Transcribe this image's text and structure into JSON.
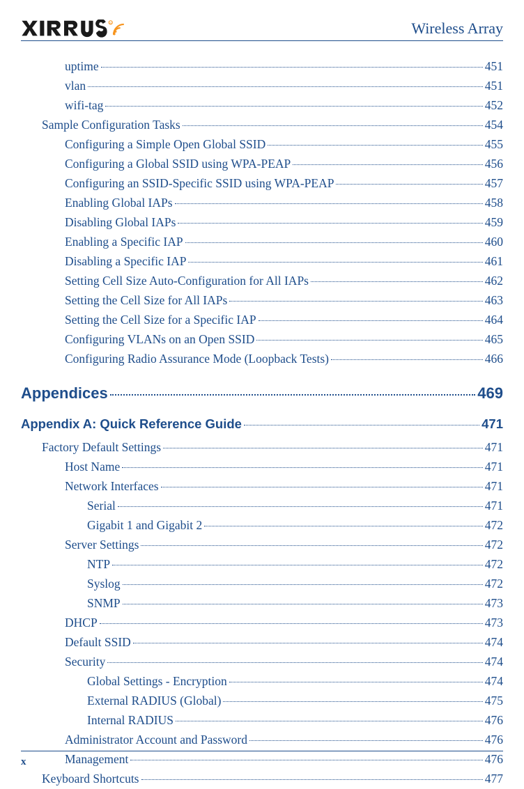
{
  "header": {
    "logo_text": "XIRRUS",
    "title": "Wireless Array"
  },
  "toc": {
    "pre_items": [
      {
        "label": "uptime",
        "page": "451",
        "indent": 2
      },
      {
        "label": "vlan",
        "page": "451",
        "indent": 2
      },
      {
        "label": "wifi-tag",
        "page": "452",
        "indent": 2
      },
      {
        "label": "Sample Configuration Tasks",
        "page": "454",
        "indent": 1
      },
      {
        "label": "Configuring a Simple Open Global SSID",
        "page": "455",
        "indent": 2
      },
      {
        "label": "Configuring a Global SSID using WPA-PEAP",
        "page": "456",
        "indent": 2
      },
      {
        "label": "Configuring an SSID-Specific SSID using WPA-PEAP",
        "page": "457",
        "indent": 2
      },
      {
        "label": "Enabling Global IAPs",
        "page": "458",
        "indent": 2
      },
      {
        "label": "Disabling Global IAPs",
        "page": "459",
        "indent": 2
      },
      {
        "label": "Enabling a Specific IAP",
        "page": "460",
        "indent": 2
      },
      {
        "label": "Disabling a Specific IAP",
        "page": "461",
        "indent": 2
      },
      {
        "label": "Setting Cell Size Auto-Configuration for All IAPs",
        "page": "462",
        "indent": 2
      },
      {
        "label": "Setting the Cell Size for All IAPs",
        "page": "463",
        "indent": 2
      },
      {
        "label": "Setting the Cell Size for a Specific IAP",
        "page": "464",
        "indent": 2
      },
      {
        "label": "Configuring VLANs on an Open SSID",
        "page": "465",
        "indent": 2
      },
      {
        "label": "Configuring Radio Assurance Mode (Loopback Tests)",
        "page": "466",
        "indent": 2
      }
    ],
    "appendices": {
      "label": "Appendices",
      "page": "469"
    },
    "appendix_a": {
      "label": "Appendix A: Quick Reference Guide",
      "page": "471"
    },
    "appendix_items": [
      {
        "label": "Factory Default Settings",
        "page": "471",
        "indent": 1
      },
      {
        "label": "Host Name",
        "page": "471",
        "indent": 2
      },
      {
        "label": "Network Interfaces",
        "page": "471",
        "indent": 2
      },
      {
        "label": "Serial",
        "page": "471",
        "indent": 3
      },
      {
        "label": "Gigabit 1 and Gigabit 2",
        "page": "472",
        "indent": 3
      },
      {
        "label": "Server Settings",
        "page": "472",
        "indent": 2
      },
      {
        "label": "NTP",
        "page": "472",
        "indent": 3
      },
      {
        "label": "Syslog",
        "page": "472",
        "indent": 3
      },
      {
        "label": "SNMP",
        "page": "473",
        "indent": 3
      },
      {
        "label": "DHCP",
        "page": "473",
        "indent": 2
      },
      {
        "label": "Default SSID",
        "page": "474",
        "indent": 2
      },
      {
        "label": "Security",
        "page": "474",
        "indent": 2
      },
      {
        "label": "Global Settings - Encryption",
        "page": "474",
        "indent": 3
      },
      {
        "label": "External RADIUS (Global)",
        "page": "475",
        "indent": 3
      },
      {
        "label": "Internal RADIUS",
        "page": "476",
        "indent": 3
      },
      {
        "label": "Administrator Account and Password",
        "page": "476",
        "indent": 2
      },
      {
        "label": "Management",
        "page": "476",
        "indent": 2
      },
      {
        "label": "Keyboard Shortcuts",
        "page": "477",
        "indent": 1
      }
    ]
  },
  "footer": {
    "page_number": "x"
  },
  "colors": {
    "primary": "#1e4d8b",
    "text_dark": "#1a1a1a",
    "background": "#ffffff"
  }
}
